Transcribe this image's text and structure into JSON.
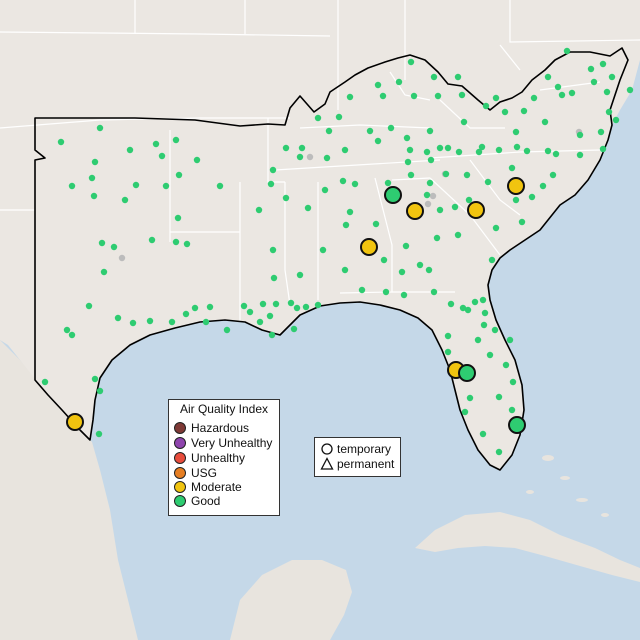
{
  "map": {
    "colors": {
      "water": "#c5d8e8",
      "land": "#ebe7e2",
      "border": "#ffffff",
      "region_outline": "#000000",
      "good": "#2ecc71",
      "moderate": "#f1c40f",
      "inactive": "#bcbcbc"
    }
  },
  "aqi_legend": {
    "title": "Air Quality Index",
    "items": [
      {
        "label": "Hazardous",
        "color": "#7e3a36"
      },
      {
        "label": "Very Unhealthy",
        "color": "#8e44ad"
      },
      {
        "label": "Unhealthy",
        "color": "#e74c3c"
      },
      {
        "label": "USG",
        "color": "#e67e22"
      },
      {
        "label": "Moderate",
        "color": "#f1c40f"
      },
      {
        "label": "Good",
        "color": "#2ecc71"
      }
    ]
  },
  "type_legend": {
    "items": [
      {
        "label": "temporary",
        "icon": "circle-outline-icon"
      },
      {
        "label": "permanent",
        "icon": "triangle-outline-icon"
      }
    ]
  },
  "large_markers": [
    {
      "aqi": "Moderate"
    },
    {
      "aqi": "Moderate"
    },
    {
      "aqi": "Moderate"
    },
    {
      "aqi": "Moderate"
    },
    {
      "aqi": "Moderate"
    },
    {
      "aqi": "Moderate"
    },
    {
      "aqi": "Good"
    },
    {
      "aqi": "Good"
    },
    {
      "aqi": "Good"
    }
  ]
}
